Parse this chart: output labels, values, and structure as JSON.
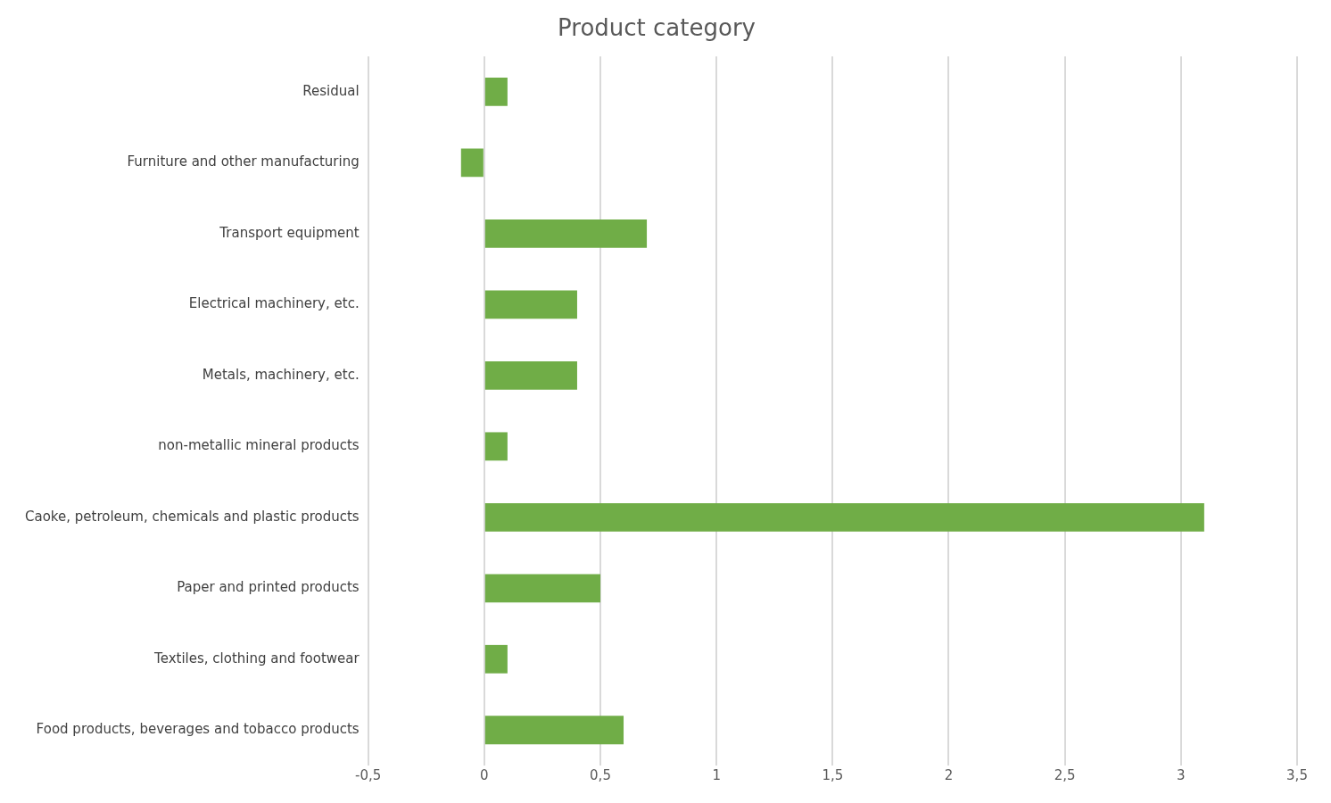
{
  "chart_data": {
    "type": "bar",
    "orientation": "horizontal",
    "title": "Product category",
    "categories": [
      "Residual",
      "Furniture and other manufacturing",
      "Transport equipment",
      "Electrical machinery, etc.",
      "Metals, machinery, etc.",
      "non-metallic mineral products",
      "Caoke, petroleum, chemicals and plastic products",
      "Paper and printed products",
      "Textiles, clothing and footwear",
      "Food products, beverages and tobacco products"
    ],
    "values": [
      0.1,
      -0.1,
      0.7,
      0.4,
      0.4,
      0.1,
      3.1,
      0.5,
      0.1,
      0.6
    ],
    "color": "#70ad47",
    "xlim": [
      -0.5,
      3.5
    ],
    "xticks": [
      {
        "value": -0.5,
        "label": "-0,5"
      },
      0,
      {
        "value": 0.5,
        "label": "0,5"
      },
      1,
      {
        "value": 1.5,
        "label": "1,5"
      },
      2,
      {
        "value": 2.5,
        "label": "2,5"
      },
      3,
      {
        "value": 3.5,
        "label": "3,5"
      }
    ],
    "grid": "x",
    "legend": false
  }
}
